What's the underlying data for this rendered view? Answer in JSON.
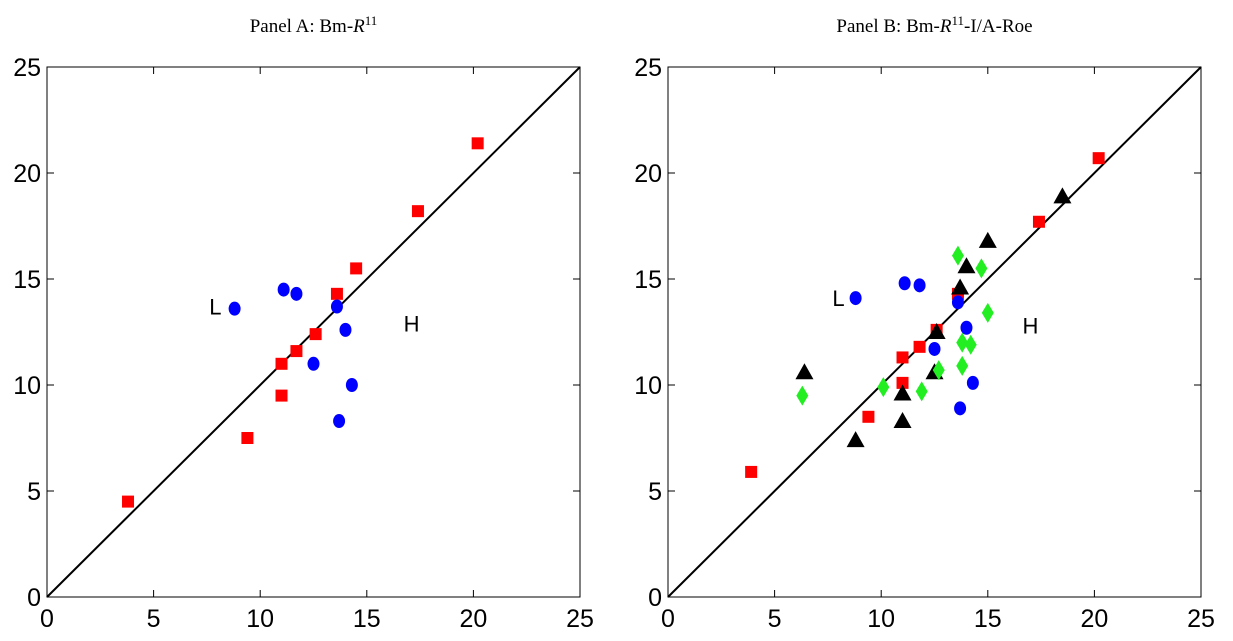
{
  "chart_data": [
    {
      "type": "scatter",
      "title": [
        {
          "text": "Panel A: Bm-"
        },
        {
          "text": "R",
          "style": "italic"
        },
        {
          "text": "11",
          "style": "sup"
        }
      ],
      "xlim": [
        0,
        25
      ],
      "ylim": [
        0,
        25
      ],
      "xticks": [
        0,
        5,
        10,
        15,
        20,
        25
      ],
      "yticks": [
        0,
        5,
        10,
        15,
        20,
        25
      ],
      "identity_line": true,
      "annotations": [
        {
          "text": "L",
          "x": 7.9,
          "y": 13.7
        },
        {
          "text": "H",
          "x": 17.1,
          "y": 12.9
        }
      ],
      "series": [
        {
          "marker": "square",
          "color": "#ff0000",
          "x": [
            3.8,
            9.4,
            11.0,
            11.0,
            11.7,
            12.6,
            13.6,
            14.5,
            17.4,
            20.2
          ],
          "y": [
            4.5,
            7.5,
            9.5,
            11.0,
            11.6,
            12.4,
            14.3,
            15.5,
            18.2,
            21.4
          ]
        },
        {
          "marker": "circle",
          "color": "#0000ff",
          "x": [
            8.8,
            11.1,
            11.7,
            13.6,
            14.0,
            12.5,
            14.3,
            13.7
          ],
          "y": [
            13.6,
            14.5,
            14.3,
            13.7,
            12.6,
            11.0,
            10.0,
            8.3
          ]
        }
      ]
    },
    {
      "type": "scatter",
      "title": [
        {
          "text": "Panel B: Bm-"
        },
        {
          "text": "R",
          "style": "italic"
        },
        {
          "text": "11",
          "style": "sup"
        },
        {
          "text": "-I/A-Roe"
        }
      ],
      "xlim": [
        0,
        25
      ],
      "ylim": [
        0,
        25
      ],
      "xticks": [
        0,
        5,
        10,
        15,
        20,
        25
      ],
      "yticks": [
        0,
        5,
        10,
        15,
        20,
        25
      ],
      "identity_line": true,
      "annotations": [
        {
          "text": "L",
          "x": 8.0,
          "y": 14.1
        },
        {
          "text": "H",
          "x": 17.0,
          "y": 12.8
        }
      ],
      "series": [
        {
          "marker": "square",
          "color": "#ff0000",
          "x": [
            3.9,
            9.4,
            11.0,
            11.0,
            11.8,
            12.6,
            13.6,
            17.4,
            20.2
          ],
          "y": [
            5.9,
            8.5,
            10.1,
            11.3,
            11.8,
            12.6,
            14.3,
            17.7,
            20.7
          ]
        },
        {
          "marker": "circle",
          "color": "#0000ff",
          "x": [
            8.8,
            11.1,
            11.8,
            13.6,
            14.0,
            12.5,
            14.3,
            13.7
          ],
          "y": [
            14.1,
            14.8,
            14.7,
            13.9,
            12.7,
            11.7,
            10.1,
            8.9
          ]
        },
        {
          "marker": "triangle",
          "color": "#000000",
          "x": [
            6.4,
            8.8,
            11.0,
            11.0,
            12.5,
            12.6,
            13.7,
            14.0,
            15.0,
            18.5
          ],
          "y": [
            10.6,
            7.4,
            9.6,
            8.3,
            10.6,
            12.5,
            14.6,
            15.6,
            16.8,
            18.9
          ]
        },
        {
          "marker": "diamond",
          "color": "#22ee22",
          "x": [
            6.3,
            10.1,
            11.9,
            12.7,
            13.6,
            14.7,
            13.8,
            14.2,
            13.8,
            15.0
          ],
          "y": [
            9.5,
            9.9,
            9.7,
            10.7,
            16.1,
            15.5,
            12.0,
            11.9,
            10.9,
            13.4
          ]
        }
      ]
    }
  ]
}
